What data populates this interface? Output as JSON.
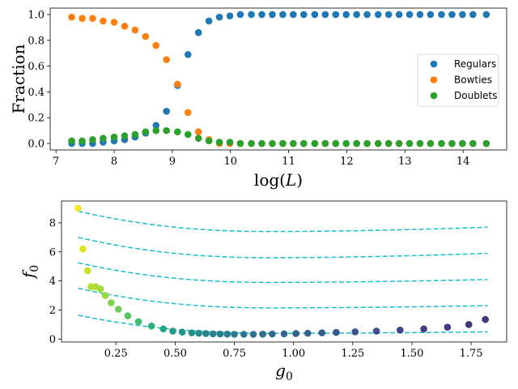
{
  "chart_data": [
    {
      "type": "scatter",
      "title": "",
      "xlabel": "log(L)",
      "ylabel": "Fraction",
      "xlim": [
        6.9,
        14.75
      ],
      "ylim": [
        -0.05,
        1.05
      ],
      "xticks": [
        7,
        8,
        9,
        10,
        11,
        12,
        13,
        14
      ],
      "xtick_labels": [
        "7",
        "8",
        "9",
        "10",
        "11",
        "12",
        "13",
        "14"
      ],
      "yticks": [
        0.0,
        0.2,
        0.4,
        0.6,
        0.8,
        1.0
      ],
      "ytick_labels": [
        "0.0",
        "0.2",
        "0.4",
        "0.6",
        "0.8",
        "1.0"
      ],
      "legend_position": "center-right",
      "x": [
        7.27,
        7.45,
        7.63,
        7.81,
        8.0,
        8.18,
        8.36,
        8.54,
        8.72,
        8.9,
        9.09,
        9.27,
        9.45,
        9.63,
        9.81,
        9.99,
        10.17,
        10.36,
        10.54,
        10.72,
        10.9,
        11.08,
        11.26,
        11.45,
        11.63,
        11.81,
        11.99,
        12.17,
        12.35,
        12.54,
        12.72,
        12.9,
        13.08,
        13.26,
        13.44,
        13.63,
        13.81,
        13.99,
        14.17,
        14.4
      ],
      "series": [
        {
          "name": "Regulars",
          "color": "#1f77b4",
          "values": [
            0.0,
            0.0,
            0.0,
            0.01,
            0.02,
            0.03,
            0.05,
            0.08,
            0.14,
            0.25,
            0.45,
            0.69,
            0.86,
            0.95,
            0.98,
            0.99,
            1.0,
            1.0,
            1.0,
            1.0,
            1.0,
            1.0,
            1.0,
            1.0,
            1.0,
            1.0,
            1.0,
            1.0,
            1.0,
            1.0,
            1.0,
            1.0,
            1.0,
            1.0,
            1.0,
            1.0,
            1.0,
            1.0,
            1.0,
            1.0
          ]
        },
        {
          "name": "Bowties",
          "color": "#ff7f0e",
          "values": [
            0.98,
            0.97,
            0.97,
            0.95,
            0.94,
            0.91,
            0.88,
            0.83,
            0.76,
            0.65,
            0.46,
            0.24,
            0.09,
            0.03,
            0.0,
            0.0,
            0.0,
            0.0,
            0.0,
            0.0,
            0.0,
            0.0,
            0.0,
            0.0,
            0.0,
            0.0,
            0.0,
            0.0,
            0.0,
            0.0,
            0.0,
            0.0,
            0.0,
            0.0,
            0.0,
            0.0,
            0.0,
            0.0,
            0.0,
            0.0
          ]
        },
        {
          "name": "Doublets",
          "color": "#2ca02c",
          "values": [
            0.02,
            0.02,
            0.03,
            0.04,
            0.05,
            0.06,
            0.07,
            0.09,
            0.1,
            0.1,
            0.09,
            0.07,
            0.04,
            0.02,
            0.01,
            0.01,
            0.0,
            0.0,
            0.0,
            0.0,
            0.0,
            0.0,
            0.0,
            0.0,
            0.0,
            0.0,
            0.0,
            0.0,
            0.0,
            0.0,
            0.0,
            0.0,
            0.0,
            0.0,
            0.0,
            0.0,
            0.0,
            0.0,
            0.0,
            0.0
          ]
        }
      ]
    },
    {
      "type": "scatter",
      "title": "",
      "xlabel": "g0",
      "ylabel": "f0",
      "xlabel_base": "g",
      "xlabel_sub": "0",
      "ylabel_base": "f",
      "ylabel_sub": "0",
      "xlim": [
        0.02,
        1.9
      ],
      "ylim": [
        -0.2,
        9.5
      ],
      "xticks": [
        0.25,
        0.5,
        0.75,
        1.0,
        1.25,
        1.5,
        1.75
      ],
      "xtick_labels": [
        "0.25",
        "0.50",
        "0.75",
        "1.00",
        "1.25",
        "1.50",
        "1.75"
      ],
      "yticks": [
        0,
        2,
        4,
        6,
        8
      ],
      "ytick_labels": [
        "0",
        "2",
        "4",
        "6",
        "8"
      ],
      "colormap": "viridis",
      "points": {
        "x": [
          0.09,
          0.11,
          0.13,
          0.145,
          0.165,
          0.185,
          0.205,
          0.23,
          0.26,
          0.3,
          0.345,
          0.4,
          0.45,
          0.49,
          0.53,
          0.57,
          0.6,
          0.63,
          0.66,
          0.69,
          0.72,
          0.75,
          0.79,
          0.83,
          0.87,
          0.91,
          0.96,
          1.01,
          1.06,
          1.12,
          1.18,
          1.26,
          1.35,
          1.45,
          1.55,
          1.65,
          1.74,
          1.81
        ],
        "y": [
          9.0,
          6.2,
          4.7,
          3.6,
          3.6,
          3.45,
          3.0,
          2.5,
          2.05,
          1.6,
          1.2,
          0.9,
          0.7,
          0.55,
          0.48,
          0.43,
          0.4,
          0.38,
          0.36,
          0.35,
          0.34,
          0.33,
          0.33,
          0.33,
          0.34,
          0.35,
          0.36,
          0.38,
          0.4,
          0.43,
          0.46,
          0.5,
          0.55,
          0.62,
          0.7,
          0.82,
          1.0,
          1.35
        ]
      },
      "curves": {
        "color": "#17becf",
        "style": "dashed",
        "x_start": 0.09,
        "x_end": 1.82,
        "x_min": 0.9,
        "series": [
          {
            "name": "curve-1",
            "y_start": 1.65,
            "y_min": 0.4,
            "y_end": 0.5
          },
          {
            "name": "curve-2",
            "y_start": 3.5,
            "y_min": 2.15,
            "y_end": 2.3
          },
          {
            "name": "curve-3",
            "y_start": 5.25,
            "y_min": 3.9,
            "y_end": 4.1
          },
          {
            "name": "curve-4",
            "y_start": 7.0,
            "y_min": 5.6,
            "y_end": 5.9
          },
          {
            "name": "curve-5",
            "y_start": 8.8,
            "y_min": 7.4,
            "y_end": 7.7
          }
        ]
      }
    }
  ]
}
